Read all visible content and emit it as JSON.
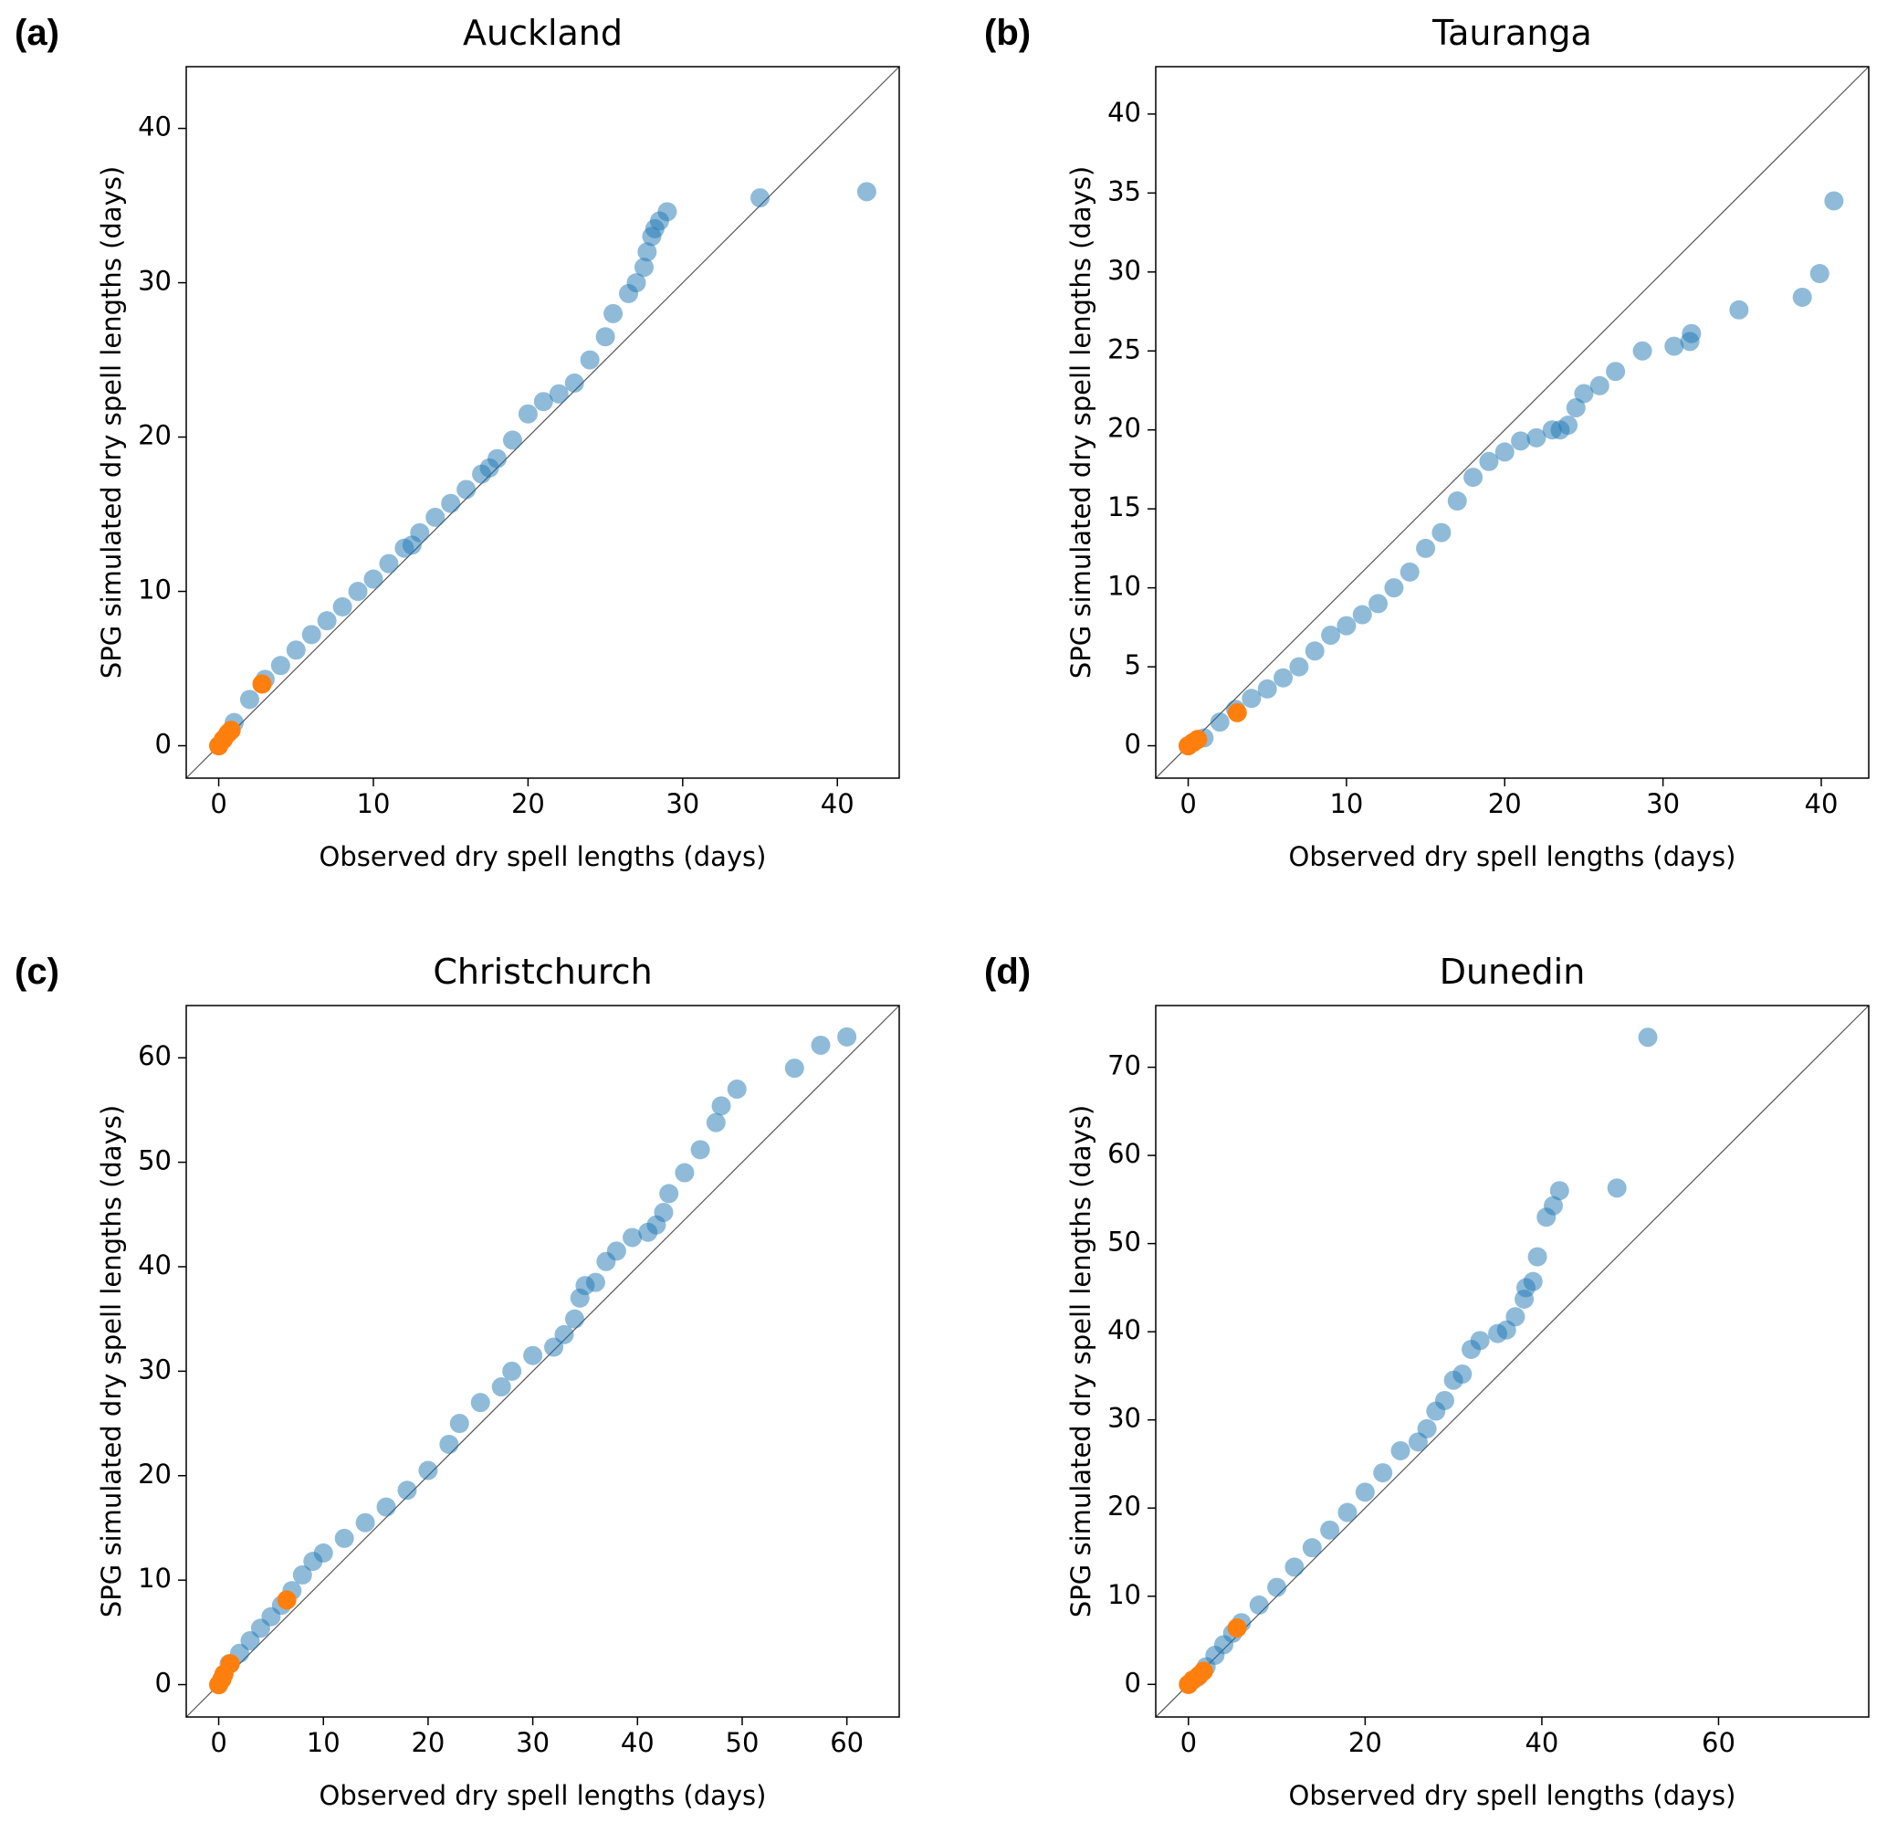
{
  "chart_data": [
    {
      "type": "scatter",
      "panel_label": "(a)",
      "title": "Auckland",
      "x_label": "Observed dry spell lengths (days)",
      "y_label": "SPG simulated dry spell lengths (days)",
      "xlim": [
        -2.1,
        44
      ],
      "ylim": [
        -2.1,
        44
      ],
      "xticks": [
        0,
        10,
        20,
        30,
        40
      ],
      "yticks": [
        0,
        10,
        20,
        30,
        40
      ],
      "series": [
        {
          "color": "#1f77b4",
          "x": [
            0,
            1,
            2,
            3,
            4,
            5,
            6,
            7,
            8,
            9,
            10,
            11,
            12,
            12.5,
            13,
            14,
            15,
            16,
            17,
            17.5,
            18,
            19,
            20,
            21,
            22,
            23,
            24,
            25,
            25.5,
            26.5,
            27,
            27.5,
            27.7,
            28,
            28.2,
            28.5,
            29,
            35,
            41.9
          ],
          "values": [
            0,
            1.5,
            3,
            4.3,
            5.2,
            6.2,
            7.2,
            8.1,
            9,
            10,
            10.8,
            11.8,
            12.8,
            13,
            13.8,
            14.8,
            15.7,
            16.6,
            17.6,
            18,
            18.6,
            19.8,
            21.5,
            22.3,
            22.8,
            23.5,
            25,
            26.5,
            28,
            29.3,
            30,
            31,
            32,
            33,
            33.5,
            34,
            34.6,
            35.5,
            35.9
          ]
        },
        {
          "color": "#ff7f0e",
          "x": [
            0,
            0.3,
            0.6,
            0.8,
            2.8
          ],
          "values": [
            0,
            0.4,
            0.8,
            1,
            4
          ]
        }
      ]
    },
    {
      "type": "scatter",
      "panel_label": "(b)",
      "title": "Tauranga",
      "x_label": "Observed dry spell lengths (days)",
      "y_label": "SPG simulated dry spell lengths (days)",
      "xlim": [
        -2.05,
        43
      ],
      "ylim": [
        -2.05,
        43
      ],
      "xticks": [
        0,
        10,
        20,
        30,
        40
      ],
      "yticks": [
        0,
        5,
        10,
        15,
        20,
        25,
        30,
        35,
        40
      ],
      "series": [
        {
          "color": "#1f77b4",
          "x": [
            0,
            1,
            2,
            3,
            4,
            5,
            6,
            7,
            8,
            9,
            10,
            11,
            12,
            13,
            14,
            15,
            16,
            17,
            18,
            19,
            20,
            21,
            22,
            23,
            23.5,
            24,
            24.5,
            25,
            26,
            27,
            28.7,
            30.7,
            31.7,
            31.8,
            34.8,
            38.8,
            39.9,
            40.8
          ],
          "values": [
            0,
            0.5,
            1.5,
            2.3,
            3,
            3.6,
            4.3,
            5,
            6,
            7,
            7.6,
            8.3,
            9,
            10,
            11,
            12.5,
            13.5,
            15.5,
            17,
            18,
            18.6,
            19.3,
            19.5,
            20,
            20,
            20.3,
            21.4,
            22.3,
            22.8,
            23.7,
            25,
            25.3,
            25.6,
            26.1,
            27.6,
            28.4,
            29.9,
            34.5
          ]
        },
        {
          "color": "#ff7f0e",
          "x": [
            0,
            0.3,
            0.6,
            3.1
          ],
          "values": [
            0,
            0.2,
            0.4,
            2.1
          ]
        }
      ]
    },
    {
      "type": "scatter",
      "panel_label": "(c)",
      "title": "Christchurch",
      "x_label": "Observed dry spell lengths (days)",
      "y_label": "SPG simulated dry spell lengths (days)",
      "xlim": [
        -3.1,
        65
      ],
      "ylim": [
        -3.1,
        65
      ],
      "xticks": [
        0,
        10,
        20,
        30,
        40,
        50,
        60
      ],
      "yticks": [
        0,
        10,
        20,
        30,
        40,
        50,
        60
      ],
      "series": [
        {
          "color": "#1f77b4",
          "x": [
            0,
            1,
            2,
            3,
            4,
            5,
            6,
            7,
            8,
            9,
            10,
            12,
            14,
            16,
            18,
            20,
            22,
            23,
            25,
            27,
            28,
            30,
            32,
            33,
            34,
            34.5,
            35,
            36,
            37,
            38,
            39.5,
            41,
            41.8,
            42.5,
            43,
            44.5,
            46,
            47.5,
            48,
            49.5,
            55,
            57.5,
            60
          ],
          "values": [
            0,
            2,
            3,
            4.2,
            5.4,
            6.5,
            7.6,
            9,
            10.5,
            11.8,
            12.6,
            14,
            15.5,
            17,
            18.6,
            20.5,
            23,
            25,
            27,
            28.5,
            30,
            31.5,
            32.3,
            33.5,
            35,
            37,
            38.2,
            38.5,
            40.5,
            41.5,
            42.8,
            43.3,
            44,
            45.2,
            47,
            49,
            51.2,
            53.8,
            55.4,
            57,
            59,
            61.2,
            62
          ]
        },
        {
          "color": "#ff7f0e",
          "x": [
            0,
            0.3,
            0.5,
            1.1,
            6.5
          ],
          "values": [
            0,
            0.5,
            1,
            2,
            8.1
          ]
        }
      ]
    },
    {
      "type": "scatter",
      "panel_label": "(d)",
      "title": "Dunedin",
      "x_label": "Observed dry spell lengths (days)",
      "y_label": "SPG simulated dry spell lengths (days)",
      "xlim": [
        -3.7,
        77
      ],
      "ylim": [
        -3.7,
        77
      ],
      "xticks": [
        0,
        20,
        40,
        60
      ],
      "yticks": [
        0,
        10,
        20,
        30,
        40,
        50,
        60,
        70
      ],
      "series": [
        {
          "color": "#1f77b4",
          "x": [
            0,
            1,
            2,
            3,
            4,
            5,
            6,
            8,
            10,
            12,
            14,
            16,
            18,
            20,
            22,
            24,
            26,
            27,
            28,
            29,
            30,
            31,
            32,
            33,
            35,
            36,
            37,
            38,
            38.2,
            39,
            39.5,
            40.5,
            41.3,
            42,
            48.5,
            52
          ],
          "values": [
            0,
            0.8,
            2,
            3.3,
            4.5,
            5.8,
            7,
            9,
            11,
            13.3,
            15.5,
            17.5,
            19.5,
            21.8,
            24,
            26.5,
            27.5,
            29,
            31,
            32.2,
            34.5,
            35.2,
            38,
            39,
            39.8,
            40.2,
            41.7,
            43.7,
            45,
            45.7,
            48.5,
            53,
            54.3,
            56,
            56.3,
            73.4
          ]
        },
        {
          "color": "#ff7f0e",
          "x": [
            0,
            0.5,
            1.2,
            1.7,
            5.5
          ],
          "values": [
            0,
            0.5,
            1,
            1.5,
            6.4
          ]
        }
      ]
    }
  ]
}
